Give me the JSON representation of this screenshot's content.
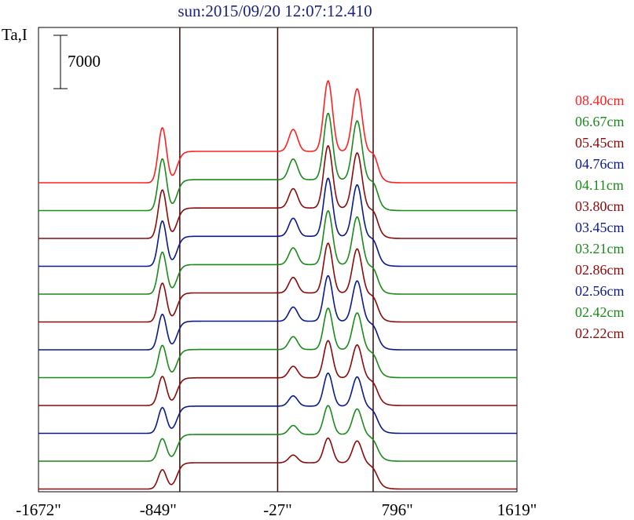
{
  "title": "sun:2015/09/20 12:07:12.410",
  "chart_data": {
    "type": "line",
    "title": "sun:2015/09/20 12:07:12.410",
    "ylabel": "Ta,I",
    "scale_bar_label": "7000",
    "x_tick_labels": [
      "-1672\"",
      "-849\"",
      "-27\"",
      "796\"",
      "1619\""
    ],
    "x_ticks": [
      -1672,
      -849,
      -27,
      796,
      1619
    ],
    "xlim": [
      -1672,
      1619
    ],
    "vertical_markers": [
      -700,
      -27,
      630
    ],
    "layout_note": "stacked spectra, each offset vertically",
    "series": [
      {
        "name": "08.40cm",
        "color": "#ff2020"
      },
      {
        "name": "06.67cm",
        "color": "#1a8a1a"
      },
      {
        "name": "05.45cm",
        "color": "#8b0a0a"
      },
      {
        "name": "04.76cm",
        "color": "#0a1a8b"
      },
      {
        "name": "04.11cm",
        "color": "#1a8a1a"
      },
      {
        "name": "03.80cm",
        "color": "#8b0a0a"
      },
      {
        "name": "03.45cm",
        "color": "#0a1a8b"
      },
      {
        "name": "03.21cm",
        "color": "#1a8a1a"
      },
      {
        "name": "02.86cm",
        "color": "#8b0a0a"
      },
      {
        "name": "02.56cm",
        "color": "#0a1a8b"
      },
      {
        "name": "02.42cm",
        "color": "#1a8a1a"
      },
      {
        "name": "02.22cm",
        "color": "#8b0a0a"
      }
    ]
  }
}
